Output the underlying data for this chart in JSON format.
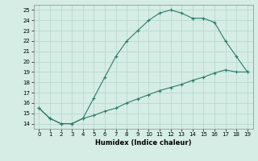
{
  "xlabel": "Humidex (Indice chaleur)",
  "line1_x": [
    0,
    1,
    2,
    3,
    4,
    5,
    6,
    7,
    8,
    9,
    10,
    11,
    12,
    13,
    14,
    15,
    16,
    17,
    18,
    19
  ],
  "line1_y": [
    15.5,
    14.5,
    14.0,
    14.0,
    14.5,
    16.5,
    18.5,
    20.5,
    22.0,
    23.0,
    24.0,
    24.7,
    25.0,
    24.7,
    24.2,
    24.2,
    23.8,
    22.0,
    20.5,
    19.0
  ],
  "line2_x": [
    0,
    1,
    2,
    3,
    4,
    5,
    6,
    7,
    8,
    9,
    10,
    11,
    12,
    13,
    14,
    15,
    16,
    17,
    18,
    19
  ],
  "line2_y": [
    15.5,
    14.5,
    14.0,
    14.0,
    14.5,
    14.8,
    15.2,
    15.5,
    16.0,
    16.4,
    16.8,
    17.2,
    17.5,
    17.8,
    18.2,
    18.5,
    18.9,
    19.2,
    19.0,
    19.0
  ],
  "color": "#2d7a6a",
  "xlim": [
    -0.5,
    19.5
  ],
  "ylim": [
    13.5,
    25.5
  ],
  "xticks": [
    0,
    1,
    2,
    3,
    4,
    5,
    6,
    7,
    8,
    9,
    10,
    11,
    12,
    13,
    14,
    15,
    16,
    17,
    18,
    19
  ],
  "yticks": [
    14,
    15,
    16,
    17,
    18,
    19,
    20,
    21,
    22,
    23,
    24,
    25
  ],
  "bg_color": "#d5ede5",
  "grid_color": "#b8d8ce"
}
